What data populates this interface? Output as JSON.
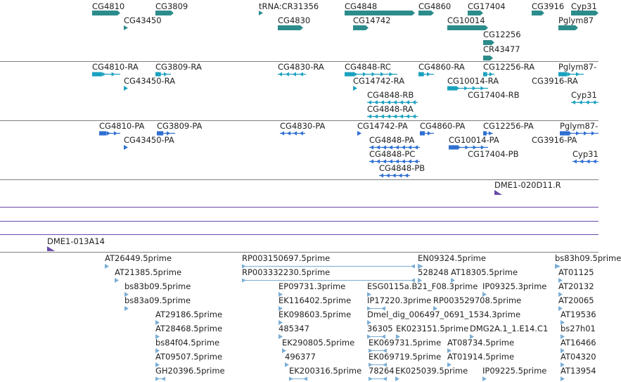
{
  "colors": {
    "gene": "#2c8c8c",
    "transcript": "#1aa1bf",
    "protein": "#2f6fd1",
    "clone": "#6a4aa8",
    "est": "#7aaed6",
    "separator_dark": "#7f7f7f",
    "separator_light": "#c8c8c8"
  },
  "tracks": {
    "genes": {
      "features": [
        {
          "label": "CG4810"
        },
        {
          "label": "CG3809"
        },
        {
          "label": "tRNA:CR31356"
        },
        {
          "label": "CG4848"
        },
        {
          "label": "CG4860"
        },
        {
          "label": "CG17404"
        },
        {
          "label": "CG3916"
        },
        {
          "label": "Cyp31"
        },
        {
          "label": "CG43450"
        },
        {
          "label": "CG4830"
        },
        {
          "label": "CG14742"
        },
        {
          "label": "CG10014"
        },
        {
          "label": "Pglym87"
        },
        {
          "label": "CG12256"
        },
        {
          "label": "CR43477"
        }
      ]
    },
    "transcripts": {
      "features": [
        {
          "label": "CG4810-RA"
        },
        {
          "label": "CG3809-RA"
        },
        {
          "label": "CG4830-RA"
        },
        {
          "label": "CG4848-RC"
        },
        {
          "label": "CG4860-RA"
        },
        {
          "label": "CG12256-RA"
        },
        {
          "label": "Pglym87-"
        },
        {
          "label": "CG43450-RA"
        },
        {
          "label": "CG14742-RA"
        },
        {
          "label": "CG10014-RA"
        },
        {
          "label": "CG3916-RA"
        },
        {
          "label": "CG4848-RB"
        },
        {
          "label": "CG17404-RB"
        },
        {
          "label": "Cyp31"
        },
        {
          "label": "CG4848-RA"
        }
      ]
    },
    "proteins": {
      "features": [
        {
          "label": "CG4810-PA"
        },
        {
          "label": "CG3809-PA"
        },
        {
          "label": "CG4830-PA"
        },
        {
          "label": "CG14742-PA"
        },
        {
          "label": "CG4860-PA"
        },
        {
          "label": "CG12256-PA"
        },
        {
          "label": "Pglym87-"
        },
        {
          "label": "CG43450-PA"
        },
        {
          "label": "CG4848-PA"
        },
        {
          "label": "CG10014-PA"
        },
        {
          "label": "CG3916-PA"
        },
        {
          "label": "CG4848-PC"
        },
        {
          "label": "CG17404-PB"
        },
        {
          "label": "Cyp31"
        },
        {
          "label": "CG4848-PB"
        }
      ]
    },
    "clones_a": {
      "features": [
        {
          "label": "DME1-020D11.R"
        }
      ]
    },
    "clones_b": {
      "features": [
        {
          "label": "DME1-013A14"
        }
      ]
    },
    "ests": {
      "features": [
        {
          "label": "AT26449.5prime"
        },
        {
          "label": "RP003150697.5prime"
        },
        {
          "label": "EN09324.5prime"
        },
        {
          "label": "bs83h09.5prime"
        },
        {
          "label": "AT21385.5prime"
        },
        {
          "label": "RP003332230.5prime"
        },
        {
          "label": "528248"
        },
        {
          "label": "AT18305.5prime"
        },
        {
          "label": "AT01125"
        },
        {
          "label": "bs83b09.5prime"
        },
        {
          "label": "EP09731.3prime"
        },
        {
          "label": "ESG0115a.B21_F08.3prime"
        },
        {
          "label": "IP09325.3prime"
        },
        {
          "label": "AT20132"
        },
        {
          "label": "bs83a09.5prime"
        },
        {
          "label": "EK116402.5prime"
        },
        {
          "label": "IP17220.3prime"
        },
        {
          "label": "RP003529708.5prime"
        },
        {
          "label": "AT20065"
        },
        {
          "label": "AT29186.5prime"
        },
        {
          "label": "EK098603.5prime"
        },
        {
          "label": "Dmel_dig_006497_0691_1534.3prime"
        },
        {
          "label": "AT19536"
        },
        {
          "label": "AT28468.5prime"
        },
        {
          "label": "485347"
        },
        {
          "label": "36305"
        },
        {
          "label": "EK023151.5prime"
        },
        {
          "label": "DMG2A.1_1.E14.C1"
        },
        {
          "label": "bs27h01"
        },
        {
          "label": "bs84f04.5prime"
        },
        {
          "label": "EK290805.5prime"
        },
        {
          "label": "EK069731.5prime"
        },
        {
          "label": "AT08734.5prime"
        },
        {
          "label": "AT16466"
        },
        {
          "label": "AT09507.5prime"
        },
        {
          "label": "496377"
        },
        {
          "label": "EK069719.5prime"
        },
        {
          "label": "AT01914.5prime"
        },
        {
          "label": "AT04320"
        },
        {
          "label": "GH20396.5prime"
        },
        {
          "label": "EK200316.5prime"
        },
        {
          "label": "78264"
        },
        {
          "label": "EK025039.5prime"
        },
        {
          "label": "IP09225.5prime"
        },
        {
          "label": "AT13954"
        }
      ]
    }
  }
}
